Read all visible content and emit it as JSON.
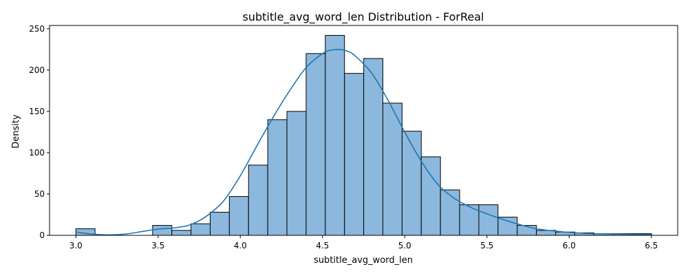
{
  "chart_data": {
    "type": "bar",
    "title": "subtitle_avg_word_len Distribution - ForReal",
    "xlabel": "subtitle_avg_word_len",
    "ylabel": "Density",
    "xlim": [
      2.84,
      6.66
    ],
    "ylim": [
      0,
      254
    ],
    "xticks": [
      3.0,
      3.5,
      4.0,
      4.5,
      5.0,
      5.5,
      6.0,
      6.5
    ],
    "xtick_labels": [
      "3.0",
      "3.5",
      "4.0",
      "4.5",
      "5.0",
      "5.5",
      "6.0",
      "6.5"
    ],
    "yticks": [
      0,
      50,
      100,
      150,
      200,
      250
    ],
    "ytick_labels": [
      "0",
      "50",
      "100",
      "150",
      "200",
      "250"
    ],
    "bins": {
      "start": 3.0,
      "width": 0.1167,
      "counts": [
        8,
        0,
        0,
        0,
        12,
        6,
        14,
        28,
        47,
        85,
        140,
        150,
        220,
        242,
        196,
        214,
        160,
        126,
        95,
        55,
        37,
        37,
        22,
        12,
        6,
        4,
        3,
        2,
        2,
        2
      ]
    },
    "kde": {
      "x": [
        3.0,
        3.1,
        3.2,
        3.3,
        3.4,
        3.5,
        3.6,
        3.7,
        3.8,
        3.9,
        4.0,
        4.1,
        4.2,
        4.3,
        4.4,
        4.5,
        4.55,
        4.6,
        4.65,
        4.7,
        4.8,
        4.9,
        5.0,
        5.1,
        5.2,
        5.3,
        5.4,
        5.5,
        5.6,
        5.7,
        5.8,
        5.9,
        6.0,
        6.1,
        6.2,
        6.3,
        6.4,
        6.5
      ],
      "y": [
        4,
        1.5,
        0.5,
        1.5,
        4.5,
        7.5,
        9,
        13,
        24,
        42,
        72,
        108,
        143,
        175,
        203,
        220,
        224,
        225,
        223,
        217,
        196,
        163,
        125,
        90,
        62,
        45,
        34,
        26,
        19,
        13,
        8,
        5.5,
        3.5,
        2.3,
        1.8,
        1.4,
        1.1,
        0.9
      ]
    },
    "colors": {
      "bar_fill": "#8bb8dc",
      "bar_edge": "#000000",
      "kde_line": "#1f77b4"
    },
    "grid": false,
    "legend": "none"
  }
}
